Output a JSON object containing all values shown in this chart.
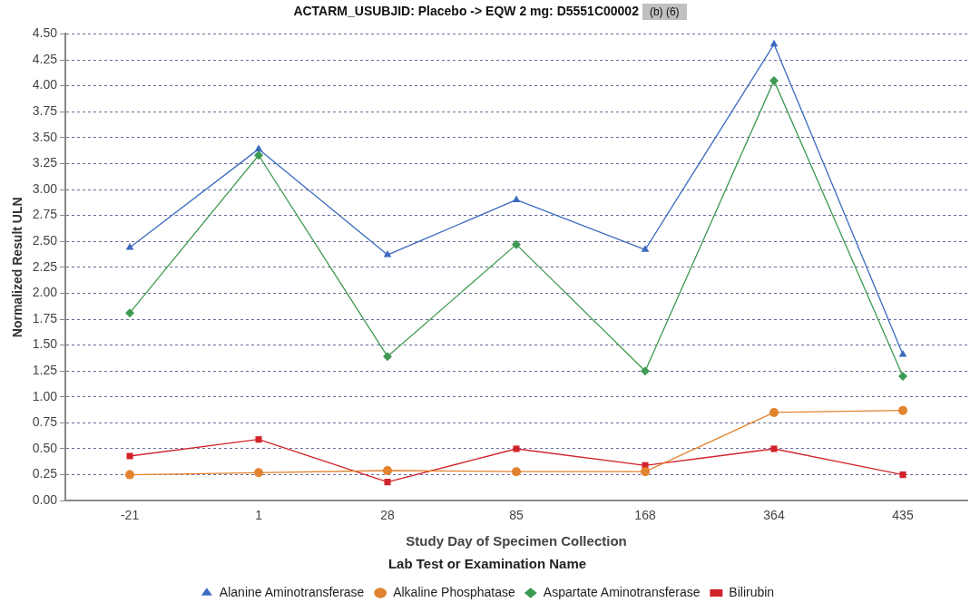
{
  "chart_data": {
    "type": "line",
    "title": "ACTARM_USUBJID: Placebo -> EQW 2 mg: D5551C00002",
    "annotations": [
      "(b) (6)"
    ],
    "xlabel": "Study Day of Specimen Collection",
    "ylabel": "Normalized Result ULN",
    "legend_title": "Lab Test or Examination Name",
    "categories": [
      "-21",
      "1",
      "28",
      "85",
      "168",
      "364",
      "435"
    ],
    "series": [
      {
        "name": "Alanine Aminotransferase",
        "color": "#3b6bbf",
        "marker": "triangle",
        "values": [
          2.44,
          3.39,
          2.37,
          2.9,
          2.42,
          4.4,
          1.41
        ]
      },
      {
        "name": "Alkaline Phosphatase",
        "color": "#e2832f",
        "marker": "circle",
        "values": [
          0.25,
          0.27,
          0.29,
          0.28,
          0.28,
          0.85,
          0.87
        ]
      },
      {
        "name": "Aspartate Aminotransferase",
        "color": "#3e9a52",
        "marker": "diamond",
        "values": [
          1.81,
          3.33,
          1.39,
          2.47,
          1.25,
          4.05,
          1.2
        ]
      },
      {
        "name": "Bilirubin",
        "color": "#d1232b",
        "marker": "square",
        "values": [
          0.43,
          0.59,
          0.18,
          0.5,
          0.34,
          0.5,
          0.25
        ]
      }
    ],
    "ylim": [
      0,
      4.5
    ],
    "yticks": [
      {
        "value": 0,
        "label": "0.00"
      },
      {
        "value": 0.25,
        "label": "0.25"
      },
      {
        "value": 0.5,
        "label": "0.50"
      },
      {
        "value": 0.75,
        "label": "0.75"
      },
      {
        "value": 1,
        "label": "1.00"
      },
      {
        "value": 1.25,
        "label": "1.25"
      },
      {
        "value": 1.5,
        "label": "1.50"
      },
      {
        "value": 1.75,
        "label": "1.75"
      },
      {
        "value": 2,
        "label": "2.00"
      },
      {
        "value": 2.25,
        "label": "2.25"
      },
      {
        "value": 2.5,
        "label": "2.50"
      },
      {
        "value": 2.75,
        "label": "2.75"
      },
      {
        "value": 3,
        "label": "3.00"
      },
      {
        "value": 3.25,
        "label": "3.25"
      },
      {
        "value": 3.5,
        "label": "3.50"
      },
      {
        "value": 3.75,
        "label": "3.75"
      },
      {
        "value": 4,
        "label": "4.00"
      },
      {
        "value": 4.25,
        "label": "4.25"
      },
      {
        "value": 4.5,
        "label": "4.50"
      }
    ],
    "grid": "y",
    "legend": "bottom",
    "line_style": "solid"
  }
}
